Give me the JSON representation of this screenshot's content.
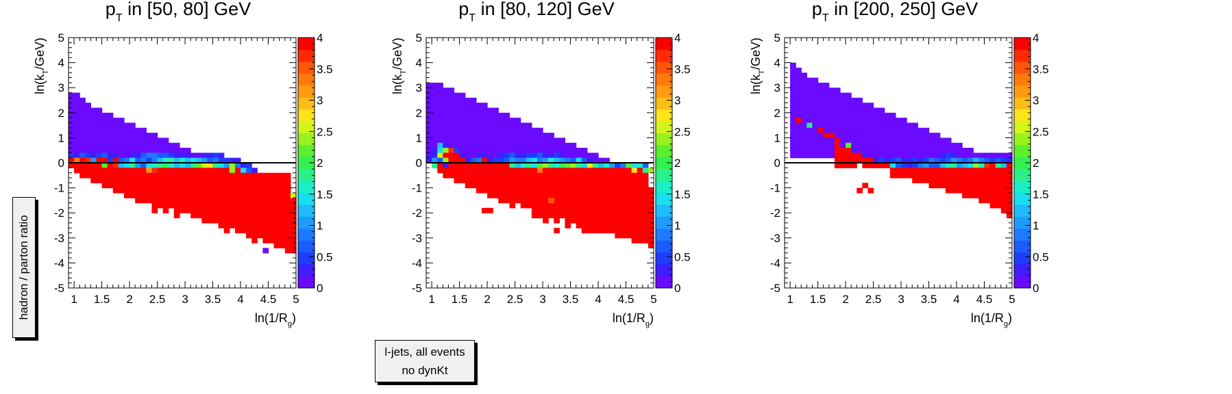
{
  "global": {
    "y_axis_label": "hadron / parton ratio",
    "sample_line1": "l-jets, all events",
    "sample_line2": "no dynKt"
  },
  "palette": [
    "#6a0aff",
    "#3f1dff",
    "#1e3dff",
    "#1b5cff",
    "#1d7bff",
    "#1f9bff",
    "#1fbcff",
    "#18dff0",
    "#19f0c8",
    "#2af08c",
    "#33f050",
    "#5bf02c",
    "#98f21e",
    "#d4f51a",
    "#ffe41a",
    "#ffbe17",
    "#ff9a12",
    "#ff7a0d",
    "#ff5608",
    "#ff2a03",
    "#ff0000"
  ],
  "chart_data": [
    {
      "type": "heatmap",
      "title": "p_T in [50, 80] GeV",
      "title_main": "p",
      "title_sub": "T",
      "title_rest": " in [50, 80] GeV",
      "xlabel": "ln(1/R_g)",
      "ylabel": "ln(k_T/GeV)",
      "xlim": [
        0.9,
        5
      ],
      "ylim": [
        -5,
        5
      ],
      "zlim": [
        0,
        4
      ],
      "x_ticks": [
        "1",
        "1.5",
        "2",
        "2.5",
        "3",
        "3.5",
        "4",
        "4.5",
        "5"
      ],
      "y_ticks": [
        "-5",
        "-4",
        "-3",
        "-2",
        "-1",
        "0",
        "1",
        "2",
        "3",
        "4",
        "5"
      ],
      "z_ticks": [
        "0",
        "0.5",
        "1",
        "1.5",
        "2",
        "2.5",
        "3",
        "3.5",
        "4"
      ],
      "bin_width_x": 0.1,
      "bin_width_y": 0.2,
      "x_bin_start": 0.9,
      "upper_edge": [
        2.8,
        2.8,
        2.6,
        2.4,
        2.2,
        2.2,
        2.0,
        2.0,
        1.8,
        1.8,
        1.6,
        1.6,
        1.4,
        1.4,
        1.2,
        1.2,
        1.0,
        1.0,
        0.8,
        0.8,
        0.6,
        0.6,
        0.4,
        0.4,
        0.2,
        0.2,
        0.0,
        0.0,
        0.0,
        0.0,
        -0.2,
        -0.4,
        -0.6,
        -0.8,
        -1.0,
        -1.2,
        -1.4,
        -1.6,
        -1.8,
        -2.0,
        -2.2
      ],
      "upper_value": 0.1,
      "band_rows": [
        {
          "y": 0.2,
          "x0": 0.9,
          "values": [
            0.5,
            0.3,
            0.7,
            0.4,
            0.2,
            0.4,
            0.6,
            0.3,
            0.2,
            0.1,
            0.1,
            0.2,
            0.3,
            0.6,
            0.8,
            0.9,
            0.7,
            0.6,
            0.4,
            0.3,
            0.2,
            0.2,
            0.1,
            0.1,
            0.2,
            0.3,
            0.4,
            0.2
          ]
        },
        {
          "y": 0.0,
          "x0": 0.9,
          "values": [
            4.0,
            3.4,
            4.0,
            3.8,
            1.0,
            3.9,
            4.0,
            0.5,
            4.0,
            0.7,
            0.8,
            1.4,
            0.6,
            0.8,
            0.4,
            0.9,
            1.2,
            1.6,
            1.8,
            1.3,
            1.6,
            1.2,
            1.5,
            1.3,
            1.0,
            0.6,
            0.9,
            0.5,
            0.4,
            0.2,
            0.3
          ]
        },
        {
          "y": -0.2,
          "x0": 0.9,
          "values": [
            4.0,
            4.0,
            4.0,
            4.0,
            4.0,
            4.0,
            2.1,
            4.0,
            3.8,
            1.2,
            1.5,
            1.8,
            1.0,
            0.6,
            1.4,
            1.7,
            1.9,
            2.0,
            1.6,
            1.2,
            1.5,
            1.3,
            1.8,
            2.2,
            2.6,
            2.8,
            1.9,
            1.4,
            1.1,
            2.3,
            0.8,
            0.3,
            0.5
          ]
        },
        {
          "y": -0.4,
          "x0": 0.9,
          "values": [
            null,
            4.0,
            4.0,
            4.0,
            4.0,
            4.0,
            4.0,
            4.0,
            4.0,
            4.0,
            4.0,
            4.0,
            4.0,
            4.0,
            3.1,
            3.7,
            4.0,
            4.0,
            4.0,
            4.0,
            4.0,
            4.0,
            4.0,
            4.0,
            4.0,
            4.0,
            4.0,
            4.0,
            3.9,
            2.4,
            4.0,
            1.5,
            0.6,
            0.3
          ]
        }
      ],
      "lower_edge": [
        -0.4,
        -0.4,
        -0.6,
        -0.6,
        -0.8,
        -0.8,
        -1.0,
        -1.0,
        -1.2,
        -1.2,
        -1.4,
        -1.4,
        -1.6,
        -1.6,
        -1.6,
        -2.0,
        -1.8,
        -2.0,
        -1.8,
        -2.2,
        -2.0,
        -2.0,
        -2.2,
        -2.2,
        -2.4,
        -2.4,
        -2.4,
        -2.6,
        -2.8,
        -2.6,
        -2.8,
        -2.8,
        -3.0,
        -3.2,
        -3.0,
        -3.2,
        -3.2,
        -3.4,
        -3.4,
        -3.6,
        -3.6
      ],
      "lower_right_notch": -1.2,
      "extra_cells": [
        {
          "x": 4.45,
          "y": -3.5,
          "v": 0.0
        },
        {
          "x": 4.95,
          "y": -1.3,
          "v": 2.5
        }
      ]
    },
    {
      "type": "heatmap",
      "title": "p_T in [80, 120] GeV",
      "title_main": "p",
      "title_sub": "T",
      "title_rest": " in [80, 120] GeV",
      "xlabel": "ln(1/R_g)",
      "ylabel": "ln(k_T/GeV)",
      "xlim": [
        0.9,
        5
      ],
      "ylim": [
        -5,
        5
      ],
      "zlim": [
        0,
        4
      ],
      "x_ticks": [
        "1",
        "1.5",
        "2",
        "2.5",
        "3",
        "3.5",
        "4",
        "4.5",
        "5"
      ],
      "y_ticks": [
        "-5",
        "-4",
        "-3",
        "-2",
        "-1",
        "0",
        "1",
        "2",
        "3",
        "4",
        "5"
      ],
      "z_ticks": [
        "0",
        "0.5",
        "1",
        "1.5",
        "2",
        "2.5",
        "3",
        "3.5",
        "4"
      ],
      "bin_width_x": 0.1,
      "bin_width_y": 0.2,
      "x_bin_start": 0.9,
      "upper_edge": [
        3.2,
        3.2,
        3.2,
        3.0,
        3.0,
        2.8,
        2.8,
        2.6,
        2.6,
        2.4,
        2.4,
        2.2,
        2.2,
        2.0,
        2.0,
        1.8,
        1.8,
        1.6,
        1.6,
        1.4,
        1.4,
        1.2,
        1.2,
        1.0,
        1.0,
        0.8,
        0.8,
        0.6,
        0.6,
        0.4,
        0.4,
        0.2,
        0.2,
        0.0,
        0.0,
        0.0,
        -0.2,
        -0.4,
        -0.6,
        -0.8,
        -1.0
      ],
      "upper_value": 0.1,
      "band_rows": [
        {
          "y": 0.6,
          "x0": 0.9,
          "values": [
            0.1,
            0.1,
            1.2,
            0.3,
            0.1
          ]
        },
        {
          "y": 0.4,
          "x0": 0.9,
          "values": [
            0.1,
            0.2,
            1.5,
            2.3,
            3.8,
            0.4,
            0.1
          ]
        },
        {
          "y": 0.2,
          "x0": 0.9,
          "values": [
            0.3,
            0.2,
            2.6,
            4.0,
            4.0,
            4.0,
            0.2,
            0.1,
            0.1,
            0.2,
            0.3,
            0.1,
            0.1,
            0.2,
            0.4,
            0.6,
            0.3,
            0.2,
            0.4,
            0.5,
            0.7,
            0.3,
            0.2,
            0.4,
            0.3,
            0.1
          ]
        },
        {
          "y": 0.0,
          "x0": 0.9,
          "values": [
            0.2,
            1.0,
            0.6,
            2.4,
            4.0,
            4.0,
            4.0,
            0.3,
            0.6,
            0.9,
            4.0,
            0.2,
            0.5,
            0.4,
            0.7,
            1.1,
            0.9,
            0.8,
            1.2,
            1.4,
            0.9,
            1.1,
            1.6,
            1.3,
            1.0,
            0.8,
            0.6,
            1.4,
            0.7,
            0.3
          ]
        },
        {
          "y": -0.2,
          "x0": 0.9,
          "values": [
            null,
            1.9,
            4.0,
            0.3,
            4.0,
            4.0,
            4.0,
            4.0,
            4.0,
            4.0,
            4.0,
            4.0,
            4.0,
            4.0,
            4.0,
            1.8,
            1.2,
            1.6,
            1.9,
            1.5,
            2.1,
            2.3,
            1.8,
            1.6,
            2.0,
            2.2,
            2.4,
            1.8,
            1.5,
            2.8,
            1.9,
            1.3,
            1.6,
            1.0,
            0.4,
            0.8,
            2.2,
            1.4,
            1.7,
            0.6
          ]
        },
        {
          "y": -0.4,
          "x0": 0.9,
          "values": [
            null,
            null,
            4.0,
            4.0,
            4.0,
            4.0,
            4.0,
            4.0,
            4.0,
            4.0,
            4.0,
            4.0,
            4.0,
            4.0,
            4.0,
            4.0,
            4.0,
            4.0,
            4.0,
            4.0,
            3.3,
            4.0,
            4.0,
            4.0,
            4.0,
            4.0,
            4.0,
            4.0,
            4.0,
            4.0,
            4.0,
            4.0,
            4.0,
            4.0,
            4.0,
            4.0,
            4.0,
            2.7,
            4.0,
            1.9,
            2.4
          ]
        }
      ],
      "lower_edge": [
        -0.4,
        -0.4,
        -0.4,
        -0.6,
        -0.6,
        -0.8,
        -0.8,
        -1.0,
        -1.0,
        -1.2,
        -1.2,
        -1.4,
        -1.4,
        -1.6,
        -1.6,
        -1.8,
        -1.6,
        -1.8,
        -1.8,
        -2.2,
        -2.2,
        -2.4,
        -2.2,
        -2.4,
        -2.2,
        -2.6,
        -2.4,
        -2.6,
        -2.6,
        -2.8,
        -2.8,
        -2.8,
        -2.8,
        -2.8,
        -3.0,
        -3.0,
        -3.0,
        -3.2,
        -3.2,
        -3.2,
        -3.4
      ],
      "lower_right_notch": -1.0,
      "extra_cells": [
        {
          "x": 1.95,
          "y": -1.9,
          "v": 4.0
        },
        {
          "x": 2.05,
          "y": -1.9,
          "v": 4.0
        },
        {
          "x": 3.55,
          "y": -2.3,
          "v": 4.0
        },
        {
          "x": 3.75,
          "y": -2.7,
          "v": 4.0
        },
        {
          "x": 3.25,
          "y": -2.7,
          "v": 4.0
        },
        {
          "x": 3.15,
          "y": -1.5,
          "v": 3.6
        }
      ]
    },
    {
      "type": "heatmap",
      "title": "p_T in [200, 250] GeV",
      "title_main": "p",
      "title_sub": "T",
      "title_rest": " in [200, 250] GeV",
      "xlabel": "ln(1/R_g)",
      "ylabel": "ln(k_T/GeV)",
      "xlim": [
        0.9,
        5
      ],
      "ylim": [
        -5,
        5
      ],
      "zlim": [
        0,
        4
      ],
      "x_ticks": [
        "1",
        "1.5",
        "2",
        "2.5",
        "3",
        "3.5",
        "4",
        "4.5",
        "5"
      ],
      "y_ticks": [
        "-5",
        "-4",
        "-3",
        "-2",
        "-1",
        "0",
        "1",
        "2",
        "3",
        "4",
        "5"
      ],
      "z_ticks": [
        "0",
        "0.5",
        "1",
        "1.5",
        "2",
        "2.5",
        "3",
        "3.5",
        "4"
      ],
      "bin_width_x": 0.1,
      "bin_width_y": 0.2,
      "x_bin_start": 0.9,
      "upper_edge": [
        null,
        4.0,
        3.8,
        3.6,
        3.4,
        3.4,
        3.2,
        3.2,
        3.0,
        3.0,
        2.8,
        2.8,
        2.6,
        2.6,
        2.4,
        2.4,
        2.2,
        2.2,
        2.0,
        2.0,
        1.8,
        1.8,
        1.6,
        1.6,
        1.4,
        1.4,
        1.2,
        1.2,
        1.0,
        1.0,
        0.8,
        0.8,
        0.6,
        0.6,
        0.4,
        0.4,
        0.2,
        0.2,
        0.0,
        0.0,
        0.0
      ],
      "upper_value": 0.1,
      "band_rows": [
        {
          "y": 1.6,
          "x0": 1.0,
          "values": [
            0.1,
            4.0
          ]
        },
        {
          "y": 1.4,
          "x0": 1.0,
          "values": [
            0.1,
            0.1,
            0.1,
            1.8,
            0.1
          ]
        },
        {
          "y": 1.2,
          "x0": 1.0,
          "values": [
            0.1,
            0.1,
            0.1,
            0.1,
            0.1,
            4.0,
            0.1
          ]
        },
        {
          "y": 1.0,
          "x0": 1.0,
          "values": [
            0.1,
            0.1,
            0.1,
            0.1,
            0.1,
            0.1,
            4.0,
            4.0,
            0.1
          ]
        },
        {
          "y": 0.8,
          "x0": 1.0,
          "values": [
            0.1,
            0.1,
            0.1,
            0.1,
            0.1,
            0.1,
            0.1,
            0.1,
            4.0,
            0.1,
            0.1,
            0.1
          ]
        },
        {
          "y": 0.6,
          "x0": 1.0,
          "values": [
            0.1,
            0.1,
            0.1,
            0.1,
            0.1,
            0.1,
            0.1,
            0.1,
            4.0,
            0.1,
            2.2,
            0.1,
            0.1,
            0.1
          ]
        },
        {
          "y": 0.4,
          "x0": 1.0,
          "values": [
            0.1,
            0.1,
            0.1,
            0.1,
            0.1,
            0.1,
            0.1,
            0.1,
            4.0,
            4.0,
            4.0,
            0.3,
            0.1,
            0.1,
            0.1,
            0.1
          ]
        },
        {
          "y": 0.2,
          "x0": 1.0,
          "values": [
            0.1,
            0.1,
            0.1,
            0.1,
            0.1,
            0.1,
            0.1,
            0.1,
            4.0,
            4.0,
            4.0,
            4.0,
            4.0,
            0.2,
            0.1,
            0.1,
            0.1,
            0.1,
            0.1,
            0.1,
            0.1,
            0.1,
            0.1,
            0.1,
            0.1,
            0.1,
            0.1,
            0.2,
            0.4,
            0.3,
            0.1,
            0.1,
            0.1,
            0.1,
            0.1,
            0.1,
            0.1,
            0.1,
            0.1,
            0.1
          ]
        },
        {
          "y": 0.0,
          "x0": 1.0,
          "values": [
            null,
            null,
            null,
            null,
            null,
            null,
            null,
            null,
            4.0,
            4.0,
            4.0,
            4.0,
            4.0,
            4.0,
            4.0,
            0.3,
            0.5,
            0.2,
            0.4,
            0.6,
            0.3,
            0.2,
            0.4,
            0.3,
            0.5,
            0.8,
            0.6,
            0.4,
            0.7,
            1.0,
            0.9,
            0.6,
            0.8,
            1.2,
            0.9,
            0.7,
            0.5,
            0.6,
            0.4,
            0.3,
            0.2
          ]
        },
        {
          "y": -0.2,
          "x0": 1.0,
          "values": [
            null,
            null,
            null,
            null,
            null,
            null,
            null,
            null,
            4.0,
            4.0,
            4.0,
            4.0,
            null,
            4.0,
            4.0,
            4.0,
            4.0,
            4.0,
            1.4,
            0.6,
            0.4,
            0.3,
            0.5,
            0.8,
            1.0,
            0.7,
            0.6,
            1.2,
            1.6,
            1.8,
            1.1,
            1.3,
            1.5,
            2.4,
            1.7,
            3.8,
            4.0,
            1.9,
            1.2,
            4.0,
            4.0
          ]
        },
        {
          "y": -0.4,
          "x0": 1.0,
          "values": [
            null,
            null,
            null,
            null,
            null,
            null,
            null,
            null,
            null,
            null,
            null,
            null,
            null,
            null,
            null,
            null,
            null,
            null,
            4.0,
            4.0,
            4.0,
            4.0,
            4.0,
            4.0,
            4.0,
            4.0,
            4.0,
            4.0,
            4.0,
            4.0,
            4.0,
            4.0,
            4.0,
            4.0,
            4.0,
            4.0,
            4.0,
            4.0,
            4.0,
            4.0,
            4.0
          ]
        }
      ],
      "lower_edge": [
        null,
        null,
        null,
        null,
        null,
        null,
        null,
        null,
        null,
        null,
        null,
        null,
        null,
        null,
        null,
        null,
        null,
        null,
        -0.4,
        -0.6,
        -0.6,
        -0.6,
        -0.6,
        -0.8,
        -0.8,
        -0.8,
        -1.0,
        -1.0,
        -1.0,
        -1.2,
        -1.2,
        -1.2,
        -1.4,
        -1.4,
        -1.4,
        -1.6,
        -1.6,
        -1.8,
        -1.8,
        -2.0,
        -2.2
      ],
      "lower_right_notch": -0.4,
      "extra_cells": [
        {
          "x": 2.35,
          "y": -0.9,
          "v": 4.0
        },
        {
          "x": 2.25,
          "y": -1.1,
          "v": 4.0
        },
        {
          "x": 2.45,
          "y": -1.1,
          "v": 4.0
        }
      ]
    }
  ]
}
